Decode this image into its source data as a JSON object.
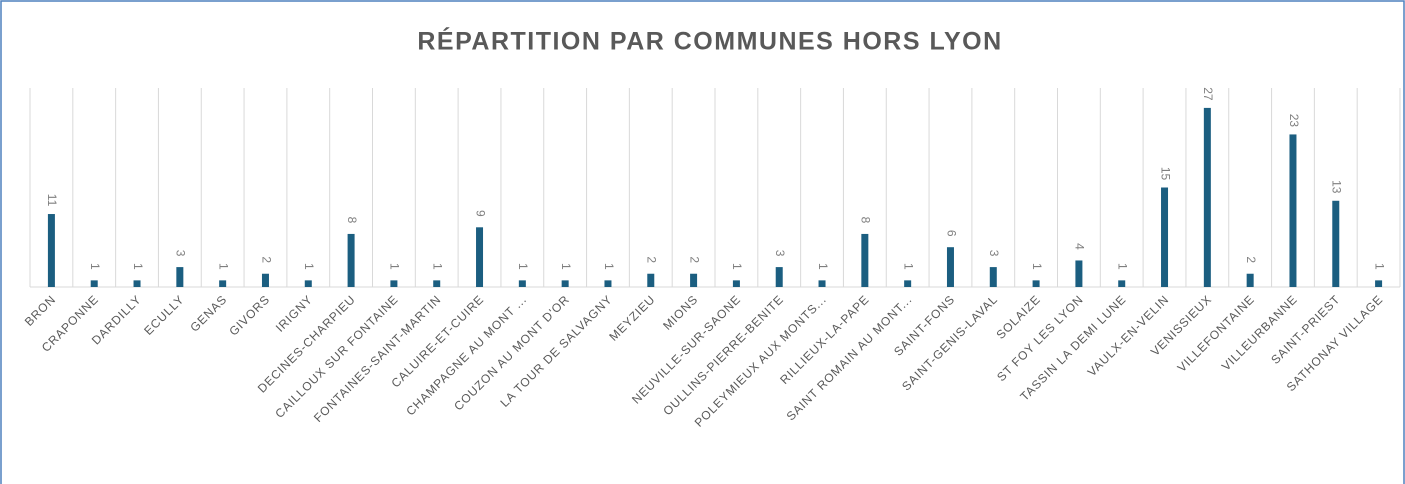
{
  "chart_data": {
    "type": "bar",
    "title": "RÉPARTITION PAR COMMUNES HORS LYON",
    "categories": [
      "BRON",
      "CRAPONNE",
      "DARDILLY",
      "ECULLY",
      "GENAS",
      "GIVORS",
      "IRIGNY",
      "DECINES-CHARPIEU",
      "CAILLOUX SUR FONTAINE",
      "FONTAINES-SAINT-MARTIN",
      "CALUIRE-ET-CUIRE",
      "CHAMPAGNE AU MONT ...",
      "COUZON AU MONT D'OR",
      "LA TOUR DE SALVAGNY",
      "MEYZIEU",
      "MIONS",
      "NEUVILLE-SUR-SAONE",
      "OULLINS-PIERRE-BENITE",
      "POLEYMIEUX AUX MONTS...",
      "RILLIEUX-LA-PAPE",
      "SAINT ROMAIN AU MONT...",
      "SAINT-FONS",
      "SAINT-GENIS-LAVAL",
      "SOLAIZE",
      "ST FOY LES LYON",
      "TASSIN LA DEMI LUNE",
      "VAULX-EN-VELIN",
      "VENISSIEUX",
      "VILLEFONTAINE",
      "VILLEURBANNE",
      "SAINT-PRIEST",
      "SATHONAY VILLAGE"
    ],
    "values": [
      11,
      1,
      1,
      3,
      1,
      2,
      1,
      8,
      1,
      1,
      9,
      1,
      1,
      1,
      2,
      2,
      1,
      3,
      1,
      8,
      1,
      6,
      3,
      1,
      4,
      1,
      15,
      27,
      2,
      23,
      13,
      1
    ],
    "color": "#1b5e80",
    "ylim": [
      0,
      30
    ]
  }
}
